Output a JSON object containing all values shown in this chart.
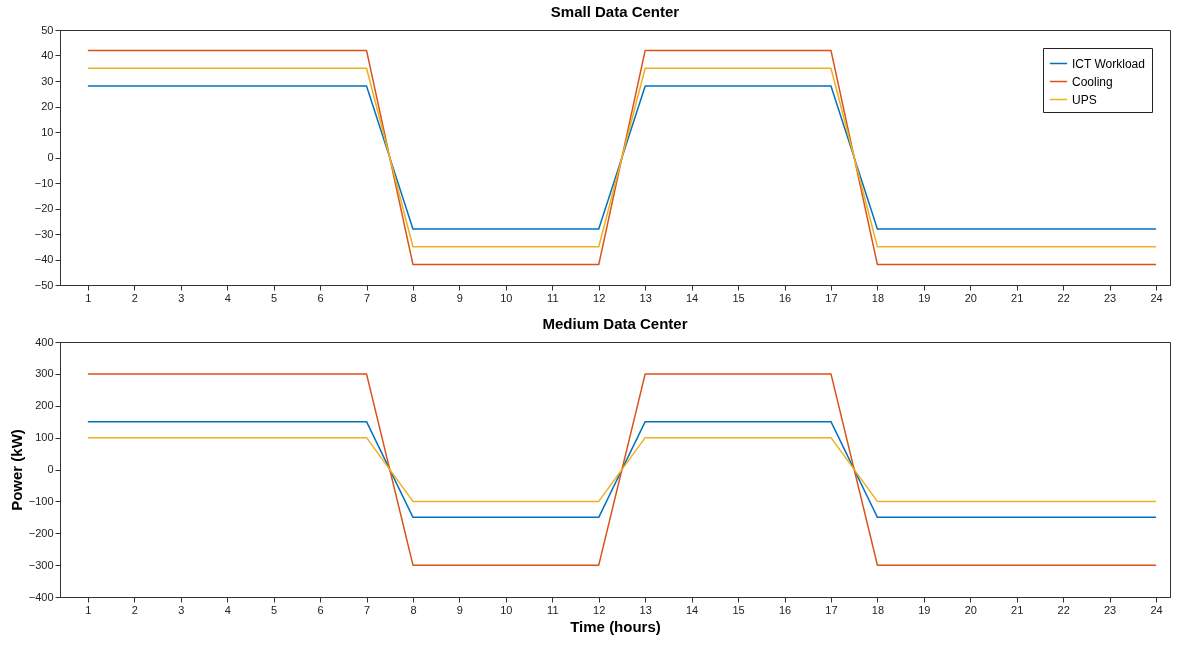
{
  "chart_data": [
    {
      "type": "line",
      "title": "Small Data Center",
      "x": [
        1,
        2,
        3,
        4,
        5,
        6,
        7,
        8,
        9,
        10,
        11,
        12,
        13,
        14,
        15,
        16,
        17,
        18,
        19,
        20,
        21,
        22,
        23,
        24
      ],
      "xlim": [
        0.4,
        24.3
      ],
      "xticks": [
        1,
        2,
        3,
        4,
        5,
        6,
        7,
        8,
        9,
        10,
        11,
        12,
        13,
        14,
        15,
        16,
        17,
        18,
        19,
        20,
        21,
        22,
        23,
        24
      ],
      "ylim": [
        -50,
        50
      ],
      "yticks": [
        -50,
        -40,
        -30,
        -20,
        -10,
        0,
        10,
        20,
        30,
        40,
        50
      ],
      "grid": false,
      "legend": "top right",
      "marker": "none",
      "series": [
        {
          "name": "ICT Workload",
          "color": "#0072bd",
          "values": [
            28,
            28,
            28,
            28,
            28,
            28,
            28,
            -28,
            -28,
            -28,
            -28,
            -28,
            28,
            28,
            28,
            28,
            28,
            -28,
            -28,
            -28,
            -28,
            -28,
            -28,
            -28
          ]
        },
        {
          "name": "Cooling",
          "color": "#d95319",
          "values": [
            42,
            42,
            42,
            42,
            42,
            42,
            42,
            -42,
            -42,
            -42,
            -42,
            -42,
            42,
            42,
            42,
            42,
            42,
            -42,
            -42,
            -42,
            -42,
            -42,
            -42,
            -42
          ]
        },
        {
          "name": "UPS",
          "color": "#edb120",
          "values": [
            35,
            35,
            35,
            35,
            35,
            35,
            35,
            -35,
            -35,
            -35,
            -35,
            -35,
            35,
            35,
            35,
            35,
            35,
            -35,
            -35,
            -35,
            -35,
            -35,
            -35,
            -35
          ]
        }
      ]
    },
    {
      "type": "line",
      "title": "Medium Data Center",
      "xlabel": "Time (hours)",
      "ylabel": "Power (kW)",
      "x": [
        1,
        2,
        3,
        4,
        5,
        6,
        7,
        8,
        9,
        10,
        11,
        12,
        13,
        14,
        15,
        16,
        17,
        18,
        19,
        20,
        21,
        22,
        23,
        24
      ],
      "xlim": [
        0.4,
        24.3
      ],
      "xticks": [
        1,
        2,
        3,
        4,
        5,
        6,
        7,
        8,
        9,
        10,
        11,
        12,
        13,
        14,
        15,
        16,
        17,
        18,
        19,
        20,
        21,
        22,
        23,
        24
      ],
      "ylim": [
        -400,
        400
      ],
      "yticks": [
        -400,
        -300,
        -200,
        -100,
        0,
        100,
        200,
        300,
        400
      ],
      "grid": false,
      "marker": "none",
      "series": [
        {
          "color": "#0072bd",
          "values": [
            150,
            150,
            150,
            150,
            150,
            150,
            150,
            -150,
            -150,
            -150,
            -150,
            -150,
            150,
            150,
            150,
            150,
            150,
            -150,
            -150,
            -150,
            -150,
            -150,
            -150,
            -150
          ]
        },
        {
          "color": "#d95319",
          "values": [
            300,
            300,
            300,
            300,
            300,
            300,
            300,
            -300,
            -300,
            -300,
            -300,
            -300,
            300,
            300,
            300,
            300,
            300,
            -300,
            -300,
            -300,
            -300,
            -300,
            -300,
            -300
          ]
        },
        {
          "color": "#edb120",
          "values": [
            100,
            100,
            100,
            100,
            100,
            100,
            100,
            -100,
            -100,
            -100,
            -100,
            -100,
            100,
            100,
            100,
            100,
            100,
            -100,
            -100,
            -100,
            -100,
            -100,
            -100,
            -100
          ]
        }
      ]
    }
  ]
}
